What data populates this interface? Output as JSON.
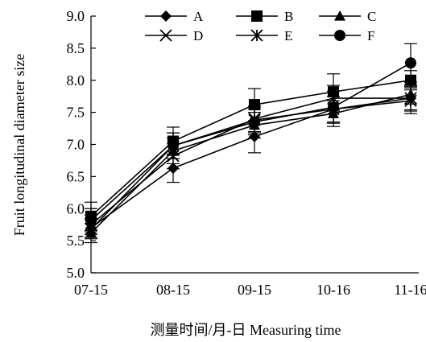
{
  "chart_data": {
    "type": "line",
    "categories": [
      "07-15",
      "08-15",
      "09-15",
      "10-16",
      "11-16"
    ],
    "ylabel": "Fruit longitudinal diameter size",
    "xlabel": "测量时间/月-日  Measuring time",
    "ylim": [
      5.0,
      9.0
    ],
    "yticks": [
      "5.0",
      "5.5",
      "6.0",
      "6.5",
      "7.0",
      "7.5",
      "8.0",
      "8.5",
      "9.0"
    ],
    "grid": false,
    "legend_position": "top",
    "series": [
      {
        "name": "A",
        "marker": "diamond",
        "values": [
          5.7,
          6.63,
          7.12,
          7.55,
          7.72
        ],
        "errors": [
          0.15,
          0.22,
          0.25,
          0.2,
          0.18
        ]
      },
      {
        "name": "B",
        "marker": "square",
        "values": [
          5.88,
          7.05,
          7.62,
          7.82,
          8.0
        ],
        "errors": [
          0.22,
          0.22,
          0.25,
          0.28,
          0.15
        ]
      },
      {
        "name": "C",
        "marker": "triangle",
        "values": [
          5.62,
          6.9,
          7.3,
          7.48,
          7.78
        ],
        "errors": [
          0.15,
          0.2,
          0.2,
          0.2,
          0.15
        ]
      },
      {
        "name": "D",
        "marker": "x",
        "values": [
          5.75,
          6.82,
          7.4,
          7.72,
          7.72
        ],
        "errors": [
          0.15,
          0.2,
          0.2,
          0.2,
          0.2
        ]
      },
      {
        "name": "E",
        "marker": "star",
        "values": [
          5.68,
          6.98,
          7.38,
          7.55,
          7.68
        ],
        "errors": [
          0.15,
          0.2,
          0.2,
          0.2,
          0.2
        ]
      },
      {
        "name": "F",
        "marker": "circle",
        "values": [
          5.82,
          6.98,
          7.35,
          7.58,
          8.27
        ],
        "errors": [
          0.18,
          0.2,
          0.2,
          0.25,
          0.3
        ]
      }
    ]
  }
}
